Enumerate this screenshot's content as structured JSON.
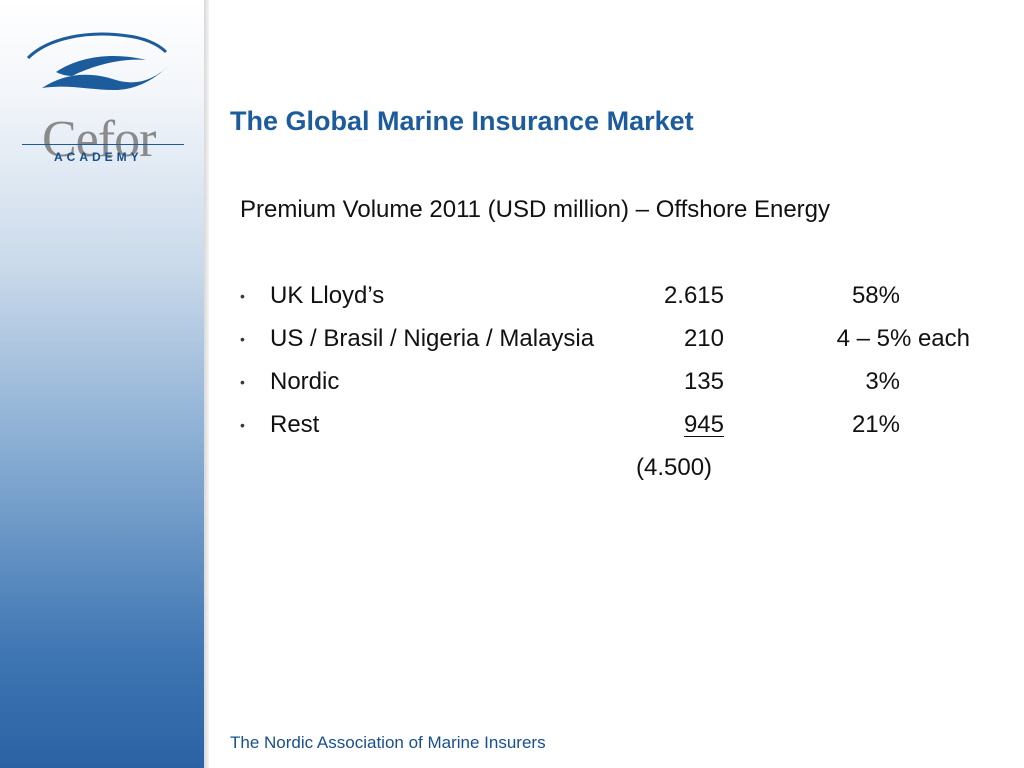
{
  "logo": {
    "word": "Cefor",
    "sub": "ACADEMY"
  },
  "title": "The Global Marine Insurance Market",
  "subtitle": "Premium Volume 2011 (USD million) – Offshore Energy",
  "rows": [
    {
      "label": "UK Lloyd’s",
      "value": "2.615",
      "share": "58%"
    },
    {
      "label": "US / Brasil / Nigeria / Malaysia",
      "value": "210",
      "share": "4 – 5% each"
    },
    {
      "label": "Nordic",
      "value": "135",
      "share": "3%"
    },
    {
      "label": "Rest",
      "value": "945",
      "share": "21%"
    }
  ],
  "total": "(4.500)",
  "footer": "The Nordic Association of Marine Insurers",
  "colors": {
    "title": "#1c5b9c",
    "sidebar_dark": "#2a62a4",
    "text": "#111111"
  }
}
